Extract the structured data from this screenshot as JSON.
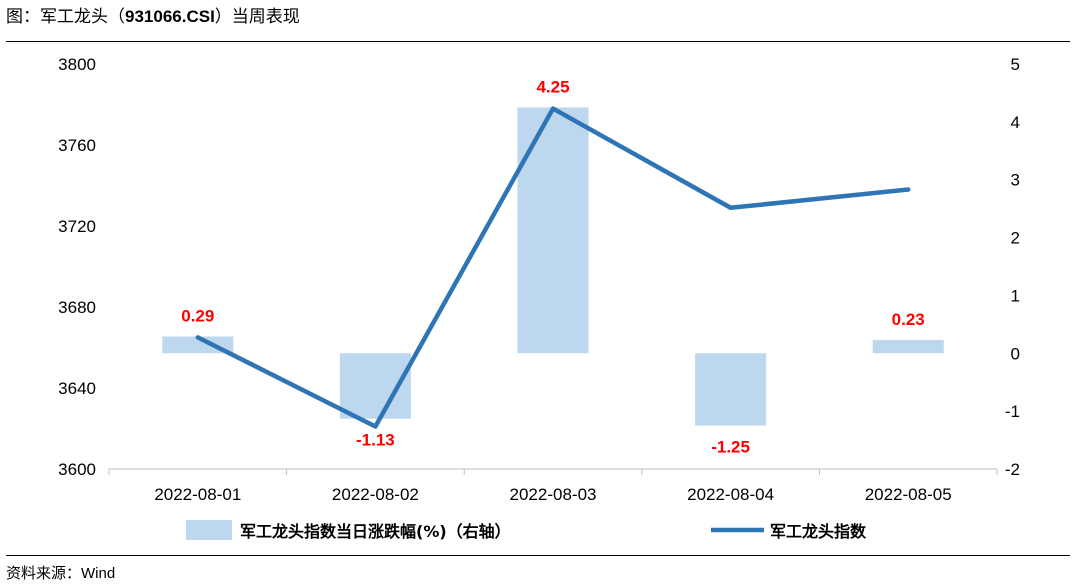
{
  "figure": {
    "title_prefix": "图：军工龙头（",
    "title_code": "931066.CSI",
    "title_suffix": "）当周表现",
    "source_prefix": "资料来源：",
    "source_name": "Wind"
  },
  "chart_data": {
    "type": "bar",
    "categories": [
      "2022-08-01",
      "2022-08-02",
      "2022-08-03",
      "2022-08-04",
      "2022-08-05"
    ],
    "series": [
      {
        "name": "军工龙头指数当日涨跌幅(%)（右轴）",
        "type": "bar",
        "axis": "right",
        "color": "#bdd7ee",
        "values": [
          0.29,
          -1.13,
          4.25,
          -1.25,
          0.23
        ],
        "data_labels": [
          "0.29",
          "-1.13",
          "4.25",
          "-1.25",
          "0.23"
        ]
      },
      {
        "name": "军工龙头指数",
        "type": "line",
        "axis": "left",
        "color": "#2e75b6",
        "values": [
          3665,
          3621,
          3778,
          3729,
          3738
        ]
      }
    ],
    "y_left": {
      "ylim": [
        3600,
        3800
      ],
      "ticks": [
        "3600",
        "3640",
        "3680",
        "3720",
        "3760",
        "3800"
      ]
    },
    "y_right": {
      "ylim": [
        -2,
        5
      ],
      "ticks": [
        "-2",
        "-1",
        "0",
        "1",
        "2",
        "3",
        "4",
        "5"
      ]
    },
    "label_color": "#ff0000",
    "grid": false,
    "legend_position": "bottom"
  }
}
